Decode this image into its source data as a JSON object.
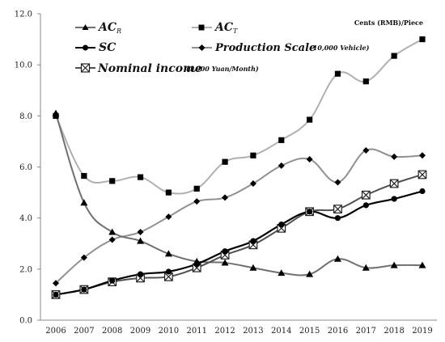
{
  "chart_data": {
    "type": "line",
    "title": "",
    "xlabel": "",
    "ylabel": "",
    "unit_note": "Cents (RMB)/Piece",
    "x": [
      2006,
      2007,
      2008,
      2009,
      2010,
      2011,
      2012,
      2013,
      2014,
      2015,
      2016,
      2017,
      2018,
      2019
    ],
    "ylim": [
      0,
      12
    ],
    "yticks": [
      "0.0",
      "2.0",
      "4.0",
      "6.0",
      "8.0",
      "10.0",
      "12.0"
    ],
    "grid": false,
    "legend_position": "top",
    "series": [
      {
        "key": "acr",
        "legend": {
          "main": "AC",
          "subscript": "R",
          "note": ""
        },
        "marker": "triangle",
        "color": "#707070",
        "values": [
          8.1,
          4.6,
          3.45,
          3.1,
          2.6,
          2.3,
          2.25,
          2.05,
          1.85,
          1.8,
          2.4,
          2.05,
          2.15,
          2.15
        ]
      },
      {
        "key": "act",
        "legend": {
          "main": "AC",
          "subscript": "T",
          "note": ""
        },
        "marker": "square",
        "color": "#b0b0b0",
        "values": [
          8.0,
          5.65,
          5.45,
          5.6,
          5.0,
          5.15,
          6.2,
          6.45,
          7.05,
          7.85,
          9.65,
          9.35,
          10.35,
          11.0
        ]
      },
      {
        "key": "sc",
        "legend": {
          "main": "SC",
          "subscript": "",
          "note": ""
        },
        "marker": "circle",
        "color": "#000000",
        "values": [
          1.0,
          1.2,
          1.55,
          1.8,
          1.9,
          2.2,
          2.7,
          3.1,
          3.75,
          4.25,
          4.0,
          4.5,
          4.75,
          5.05
        ]
      },
      {
        "key": "ps",
        "legend": {
          "main": "Production Scale",
          "subscript": "",
          "note": "(10,000 Vehicle)"
        },
        "marker": "diamond",
        "color": "#909090",
        "values": [
          1.45,
          2.45,
          3.15,
          3.45,
          4.05,
          4.65,
          4.8,
          5.35,
          6.05,
          6.3,
          5.4,
          6.65,
          6.4,
          6.45
        ]
      },
      {
        "key": "ni",
        "legend": {
          "main": "Nominal income",
          "subscript": "",
          "note": "(1,000  Yuan/Month)"
        },
        "marker": "square-x",
        "color": "#505050",
        "values": [
          1.0,
          1.2,
          1.5,
          1.65,
          1.7,
          2.05,
          2.55,
          2.95,
          3.6,
          4.25,
          4.35,
          4.9,
          5.35,
          5.7
        ]
      }
    ]
  }
}
